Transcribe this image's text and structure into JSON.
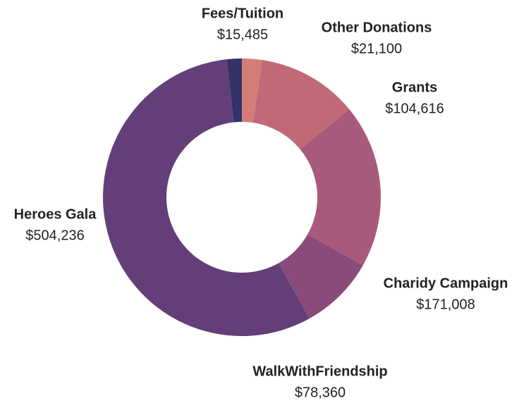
{
  "chart_data": {
    "type": "donut",
    "categories": [
      "Other Donations",
      "Grants",
      "Charidy Campaign",
      "WalkWithFriendship",
      "Heroes Gala",
      "Fees/Tuition"
    ],
    "values": [
      21100,
      104616,
      171008,
      78360,
      504236,
      15485
    ],
    "value_labels": [
      "$21,100",
      "$104,616",
      "$171,008",
      "$78,360",
      "$504,236",
      "$15,485"
    ],
    "colors": [
      "#d47c78",
      "#c06a78",
      "#a85a7c",
      "#8a4b7a",
      "#633e78",
      "#33336a"
    ]
  }
}
